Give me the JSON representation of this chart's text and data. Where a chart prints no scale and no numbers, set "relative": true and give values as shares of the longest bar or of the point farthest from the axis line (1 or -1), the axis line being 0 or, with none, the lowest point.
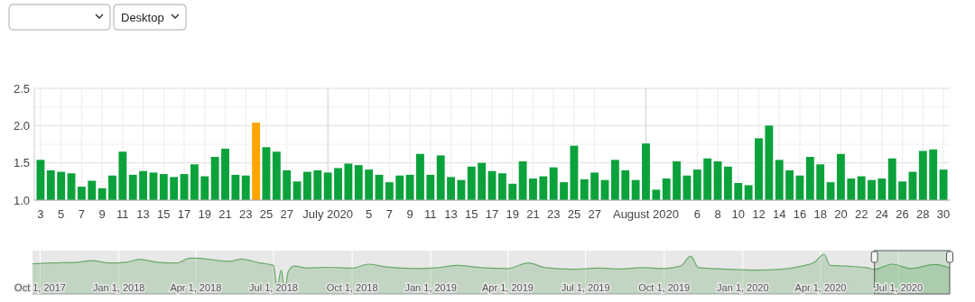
{
  "chart_data": [
    {
      "type": "bar",
      "annotations": [
        "Desktop"
      ],
      "categories": [
        "3",
        null,
        "5",
        null,
        "7",
        null,
        "9",
        null,
        "11",
        null,
        "13",
        null,
        "15",
        null,
        "17",
        null,
        "19",
        null,
        "21",
        null,
        "23",
        null,
        "25",
        null,
        "27",
        null,
        null,
        null,
        "July 2020",
        null,
        null,
        null,
        "5",
        null,
        "7",
        null,
        "9",
        null,
        "11",
        null,
        "13",
        null,
        "15",
        null,
        "17",
        null,
        "19",
        null,
        "21",
        null,
        "23",
        null,
        "25",
        null,
        "27",
        null,
        null,
        null,
        null,
        "August 2020",
        null,
        null,
        null,
        null,
        "6",
        null,
        "8",
        null,
        "10",
        null,
        "12",
        null,
        "14",
        null,
        "16",
        null,
        "18",
        null,
        "20",
        null,
        "22",
        null,
        "24",
        null,
        "26",
        null,
        "28",
        null,
        "30"
      ],
      "values": [
        1.54,
        1.4,
        1.38,
        1.36,
        1.18,
        1.26,
        1.16,
        1.33,
        1.65,
        1.34,
        1.39,
        1.37,
        1.35,
        1.31,
        1.35,
        1.48,
        1.32,
        1.58,
        1.69,
        1.34,
        1.33,
        2.04,
        1.71,
        1.65,
        1.4,
        1.25,
        1.38,
        1.4,
        1.37,
        1.43,
        1.49,
        1.47,
        1.41,
        1.34,
        1.24,
        1.33,
        1.34,
        1.62,
        1.34,
        1.6,
        1.31,
        1.27,
        1.45,
        1.5,
        1.39,
        1.36,
        1.22,
        1.52,
        1.29,
        1.32,
        1.44,
        1.24,
        1.73,
        1.28,
        1.37,
        1.27,
        1.54,
        1.4,
        1.27,
        1.76,
        1.14,
        1.29,
        1.52,
        1.33,
        1.41,
        1.56,
        1.52,
        1.45,
        1.23,
        1.2,
        1.83,
        2.0,
        1.54,
        1.4,
        1.33,
        1.58,
        1.48,
        1.24,
        1.62,
        1.29,
        1.32,
        1.27,
        1.29,
        1.56,
        1.25,
        1.38,
        1.66,
        1.68,
        1.41
      ],
      "colors": [
        "#0ba23b",
        "#0ba23b",
        "#0ba23b",
        "#0ba23b",
        "#0ba23b",
        "#0ba23b",
        "#0ba23b",
        "#0ba23b",
        "#0ba23b",
        "#0ba23b",
        "#0ba23b",
        "#0ba23b",
        "#0ba23b",
        "#0ba23b",
        "#0ba23b",
        "#0ba23b",
        "#0ba23b",
        "#0ba23b",
        "#0ba23b",
        "#0ba23b",
        "#0ba23b",
        "#ffa500",
        "#0ba23b",
        "#0ba23b",
        "#0ba23b",
        "#0ba23b",
        "#0ba23b",
        "#0ba23b",
        "#0ba23b",
        "#0ba23b",
        "#0ba23b",
        "#0ba23b",
        "#0ba23b",
        "#0ba23b",
        "#0ba23b",
        "#0ba23b",
        "#0ba23b",
        "#0ba23b",
        "#0ba23b",
        "#0ba23b",
        "#0ba23b",
        "#0ba23b",
        "#0ba23b",
        "#0ba23b",
        "#0ba23b",
        "#0ba23b",
        "#0ba23b",
        "#0ba23b",
        "#0ba23b",
        "#0ba23b",
        "#0ba23b",
        "#0ba23b",
        "#0ba23b",
        "#0ba23b",
        "#0ba23b",
        "#0ba23b",
        "#0ba23b",
        "#0ba23b",
        "#0ba23b",
        "#0ba23b",
        "#0ba23b",
        "#0ba23b",
        "#0ba23b",
        "#0ba23b",
        "#0ba23b",
        "#0ba23b",
        "#0ba23b",
        "#0ba23b",
        "#0ba23b",
        "#0ba23b",
        "#0ba23b",
        "#0ba23b",
        "#0ba23b",
        "#0ba23b",
        "#0ba23b",
        "#0ba23b",
        "#0ba23b",
        "#0ba23b",
        "#0ba23b",
        "#0ba23b",
        "#0ba23b",
        "#0ba23b",
        "#0ba23b",
        "#0ba23b",
        "#0ba23b",
        "#0ba23b",
        "#0ba23b",
        "#0ba23b",
        "#0ba23b"
      ],
      "ylim": [
        1,
        2.5
      ],
      "yticks": [
        {
          "value": 1,
          "label": "1.0"
        },
        {
          "value": 1.25,
          "label": null
        },
        {
          "value": 1.5,
          "label": "1.5"
        },
        {
          "value": 1.75,
          "label": null
        },
        {
          "value": 2,
          "label": "2.0"
        },
        {
          "value": 2.25,
          "label": null
        },
        {
          "value": 2.5,
          "label": "2.5"
        }
      ],
      "grid": true
    },
    {
      "type": "area",
      "relative": true,
      "grid": "x",
      "color": "#6aaa6a",
      "xlim": [
        "2017-09-22",
        "2020-08-30"
      ],
      "xticks": [
        {
          "value": "2017-10-01",
          "label": "Oct 1, 2017"
        },
        {
          "value": "2018-01-01",
          "label": "Jan 1, 2018"
        },
        {
          "value": "2018-04-01",
          "label": "Apr 1, 2018"
        },
        {
          "value": "2018-07-01",
          "label": "Jul 1, 2018"
        },
        {
          "value": "2018-10-01",
          "label": "Oct 1, 2018"
        },
        {
          "value": "2019-01-01",
          "label": "Jan 1, 2019"
        },
        {
          "value": "2019-04-01",
          "label": "Apr 1, 2019"
        },
        {
          "value": "2019-07-01",
          "label": "Jul 1, 2019"
        },
        {
          "value": "2019-10-01",
          "label": "Oct 1, 2019"
        },
        {
          "value": "2020-01-01",
          "label": "Jan 1, 2020"
        },
        {
          "value": "2020-04-01",
          "label": "Apr 1, 2020"
        },
        {
          "value": "2020-07-01",
          "label": "Jul 1, 2020"
        }
      ],
      "x": [
        "2017-09-22",
        "2017-10-15",
        "2017-11-15",
        "2017-12-01",
        "2017-12-20",
        "2018-01-10",
        "2018-01-25",
        "2018-02-15",
        "2018-03-10",
        "2018-03-25",
        "2018-04-01",
        "2018-04-20",
        "2018-05-10",
        "2018-05-25",
        "2018-06-15",
        "2018-07-01",
        "2018-07-05",
        "2018-07-10",
        "2018-07-14",
        "2018-07-18",
        "2018-07-25",
        "2018-08-10",
        "2018-09-01",
        "2018-10-01",
        "2018-10-20",
        "2018-11-10",
        "2018-12-15",
        "2019-01-10",
        "2019-02-01",
        "2019-03-01",
        "2019-04-01",
        "2019-04-25",
        "2019-05-15",
        "2019-06-15",
        "2019-07-15",
        "2019-08-10",
        "2019-09-05",
        "2019-10-01",
        "2019-10-20",
        "2019-11-01",
        "2019-11-10",
        "2019-12-15",
        "2020-01-15",
        "2020-02-15",
        "2020-03-10",
        "2020-03-25",
        "2020-04-05",
        "2020-04-12",
        "2020-05-01",
        "2020-05-25",
        "2020-06-03",
        "2020-06-24",
        "2020-07-15",
        "2020-08-13",
        "2020-08-30"
      ],
      "values": [
        0.76,
        0.78,
        0.8,
        0.84,
        0.78,
        0.8,
        0.87,
        0.8,
        0.78,
        0.9,
        0.9,
        0.86,
        0.82,
        0.88,
        0.78,
        0.72,
        0.15,
        0.6,
        0.1,
        0.55,
        0.7,
        0.65,
        0.67,
        0.65,
        0.75,
        0.68,
        0.64,
        0.66,
        0.72,
        0.66,
        0.64,
        0.78,
        0.66,
        0.62,
        0.65,
        0.63,
        0.66,
        0.64,
        0.7,
        0.95,
        0.66,
        0.62,
        0.6,
        0.62,
        0.7,
        0.8,
        1.0,
        0.72,
        0.7,
        0.66,
        0.62,
        0.75,
        0.64,
        0.74,
        0.65
      ],
      "bands": [
        {
          "axis": "x",
          "from": "2020-06-03",
          "to": "2020-08-30",
          "color": "#2f9a3a"
        }
      ]
    }
  ]
}
